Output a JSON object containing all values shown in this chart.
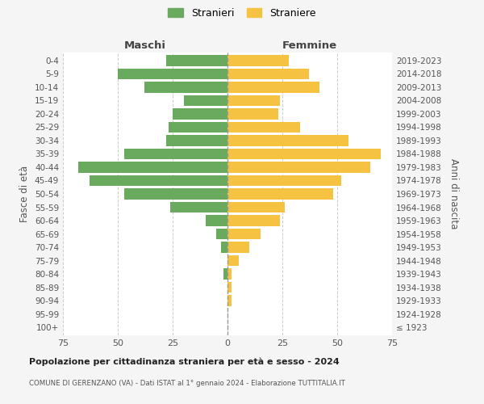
{
  "age_groups": [
    "100+",
    "95-99",
    "90-94",
    "85-89",
    "80-84",
    "75-79",
    "70-74",
    "65-69",
    "60-64",
    "55-59",
    "50-54",
    "45-49",
    "40-44",
    "35-39",
    "30-34",
    "25-29",
    "20-24",
    "15-19",
    "10-14",
    "5-9",
    "0-4"
  ],
  "birth_years": [
    "≤ 1923",
    "1924-1928",
    "1929-1933",
    "1934-1938",
    "1939-1943",
    "1944-1948",
    "1949-1953",
    "1954-1958",
    "1959-1963",
    "1964-1968",
    "1969-1973",
    "1974-1978",
    "1979-1983",
    "1984-1988",
    "1989-1993",
    "1994-1998",
    "1999-2003",
    "2004-2008",
    "2009-2013",
    "2014-2018",
    "2019-2023"
  ],
  "maschi": [
    0,
    0,
    0,
    0,
    2,
    0,
    3,
    5,
    10,
    26,
    47,
    63,
    68,
    47,
    28,
    27,
    25,
    20,
    38,
    50,
    28
  ],
  "femmine": [
    0,
    0,
    2,
    2,
    2,
    5,
    10,
    15,
    24,
    26,
    48,
    52,
    65,
    70,
    55,
    33,
    23,
    24,
    42,
    37,
    28
  ],
  "male_color": "#6aaa5f",
  "female_color": "#f5c242",
  "bg_color": "#f5f5f5",
  "bar_bg_color": "#ffffff",
  "grid_color": "#cccccc",
  "title": "Popolazione per cittadinanza straniera per età e sesso - 2024",
  "subtitle": "COMUNE DI GERENZANO (VA) - Dati ISTAT al 1° gennaio 2024 - Elaborazione TUTTITALIA.IT",
  "ylabel_left": "Fasce di età",
  "ylabel_right": "Anni di nascita",
  "xlabel_maschi": "Maschi",
  "xlabel_femmine": "Femmine",
  "legend_maschi": "Stranieri",
  "legend_femmine": "Straniere",
  "xlim": 75
}
